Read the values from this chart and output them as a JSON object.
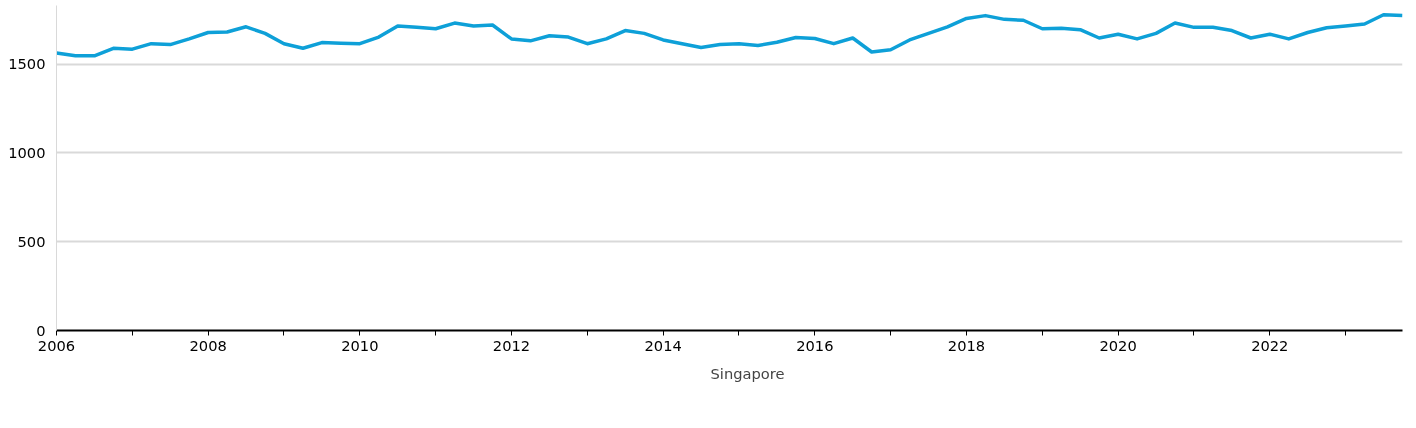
{
  "chart_data": {
    "type": "line",
    "x": [
      2006,
      2006.25,
      2006.5,
      2006.75,
      2007,
      2007.25,
      2007.5,
      2007.75,
      2008,
      2008.25,
      2008.5,
      2008.75,
      2009,
      2009.25,
      2009.5,
      2009.75,
      2010,
      2010.25,
      2010.5,
      2010.75,
      2011,
      2011.25,
      2011.5,
      2011.75,
      2012,
      2012.25,
      2012.5,
      2012.75,
      2013,
      2013.25,
      2013.5,
      2013.75,
      2014,
      2014.25,
      2014.5,
      2014.75,
      2015,
      2015.25,
      2015.5,
      2015.75,
      2016,
      2016.25,
      2016.5,
      2016.75,
      2017,
      2017.25,
      2017.5,
      2017.75,
      2018,
      2018.25,
      2018.5,
      2018.75,
      2019,
      2019.25,
      2019.5,
      2019.75,
      2020,
      2020.25,
      2020.5,
      2020.75,
      2021,
      2021.25,
      2021.5,
      2021.75,
      2022,
      2022.25,
      2022.5,
      2022.75,
      2023,
      2023.25,
      2023.5,
      2023.75
    ],
    "series": [
      {
        "name": "Singapore",
        "color": "#0ea0d8",
        "values": [
          1563,
          1547,
          1547,
          1589,
          1584,
          1615,
          1610,
          1642,
          1678,
          1681,
          1710,
          1673,
          1615,
          1589,
          1621,
          1618,
          1615,
          1652,
          1715,
          1707,
          1699,
          1731,
          1715,
          1720,
          1642,
          1631,
          1660,
          1652,
          1615,
          1642,
          1689,
          1673,
          1636,
          1615,
          1594,
          1610,
          1615,
          1605,
          1623,
          1650,
          1644,
          1615,
          1647,
          1568,
          1581,
          1636,
          1673,
          1710,
          1757,
          1773,
          1752,
          1747,
          1699,
          1702,
          1694,
          1647,
          1668,
          1642,
          1673,
          1731,
          1707,
          1707,
          1689,
          1647,
          1668,
          1642,
          1678,
          1705,
          1715,
          1726,
          1778,
          1773
        ]
      }
    ],
    "xlim": [
      2006,
      2023.75
    ],
    "xticks": [
      2006,
      {
        "value": 2007,
        "label": null
      },
      2008,
      {
        "value": 2009,
        "label": null
      },
      2010,
      {
        "value": 2011,
        "label": null
      },
      2012,
      {
        "value": 2013,
        "label": null
      },
      2014,
      {
        "value": 2015,
        "label": null
      },
      2016,
      {
        "value": 2017,
        "label": null
      },
      2018,
      {
        "value": 2019,
        "label": null
      },
      2020,
      {
        "value": 2021,
        "label": null
      },
      2022,
      {
        "value": 2023,
        "label": null
      }
    ],
    "ylim": [
      0,
      1830
    ],
    "yticks": [
      0,
      500,
      1000,
      1500
    ],
    "grid": "y",
    "legend": "bottom",
    "marker": "none",
    "line_style": "solid"
  }
}
